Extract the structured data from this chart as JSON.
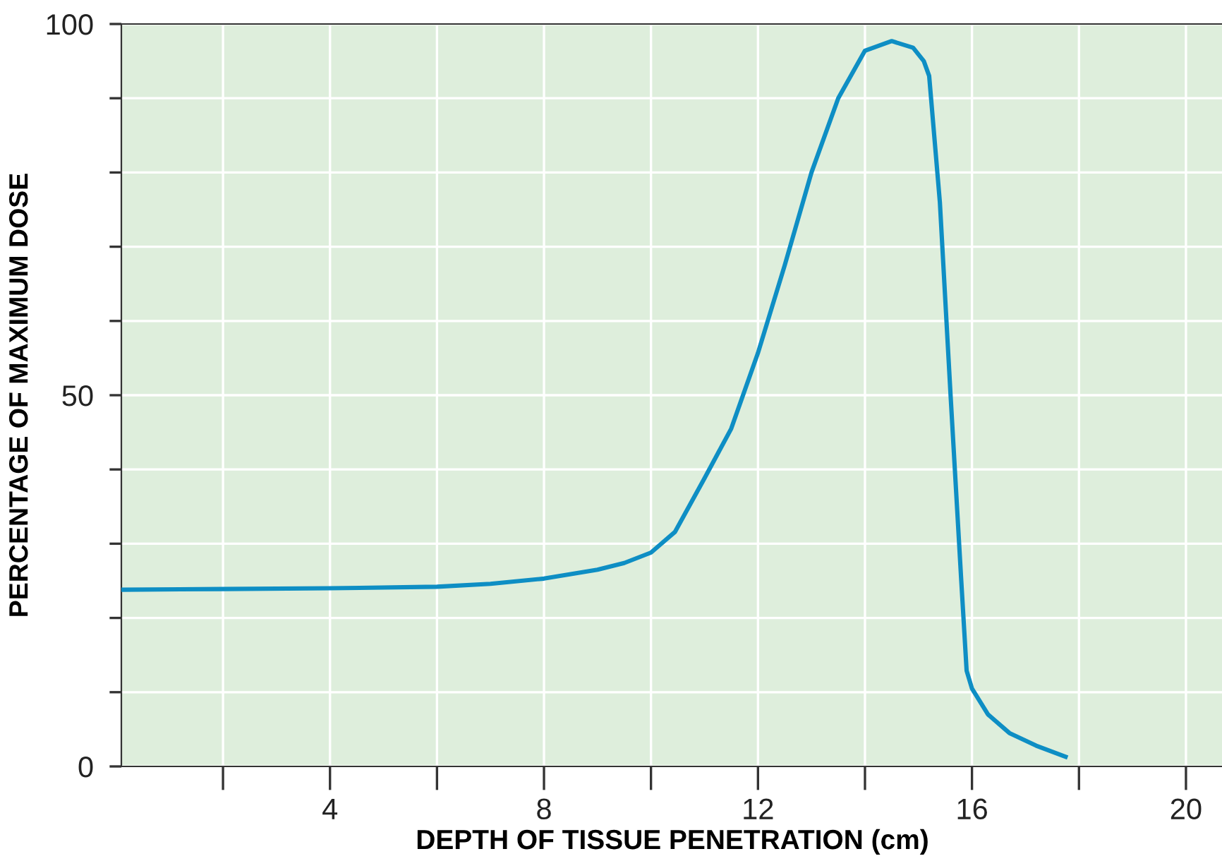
{
  "chart_data": {
    "type": "line",
    "xlabel": "DEPTH OF TISSUE PENETRATION (cm)",
    "ylabel": "PERCENTAGE OF MAXIMUM DOSE",
    "series": [
      {
        "color": "#0e8ec4",
        "x": [
          0.1,
          2,
          4,
          6,
          7,
          8,
          9,
          9.5,
          10,
          10.45,
          11,
          11.5,
          12,
          12.5,
          13,
          13.5,
          14,
          14.5,
          14.9,
          15.1,
          15.2,
          15.4,
          15.6,
          15.8,
          15.9,
          16,
          16.3,
          16.7,
          17.2,
          17.75
        ],
        "values": [
          23.8,
          23.9,
          24,
          24.2,
          24.6,
          25.3,
          26.5,
          27.4,
          28.8,
          31.6,
          38.8,
          45.5,
          55.7,
          67.5,
          80,
          90,
          96.4,
          97.7,
          96.8,
          95,
          93,
          76,
          50,
          25,
          12.9,
          10.5,
          7,
          4.5,
          2.8,
          1.3
        ]
      }
    ],
    "xlim": [
      0.1,
      20.7
    ],
    "ylim": [
      0,
      100
    ],
    "xticks": [
      {
        "value": 2,
        "label": null
      },
      4,
      {
        "value": 6,
        "label": null
      },
      8,
      {
        "value": 10,
        "label": null
      },
      12,
      {
        "value": 14,
        "label": null
      },
      16,
      {
        "value": 18,
        "label": null
      },
      20
    ],
    "yticks": [
      0,
      {
        "value": 10,
        "label": null
      },
      {
        "value": 20,
        "label": null
      },
      {
        "value": 30,
        "label": null
      },
      {
        "value": 40,
        "label": null
      },
      50,
      {
        "value": 60,
        "label": null
      },
      {
        "value": 70,
        "label": null
      },
      {
        "value": 80,
        "label": null
      },
      {
        "value": 90,
        "label": null
      },
      100
    ],
    "grid": true,
    "marker": "none",
    "line_style": "solid"
  }
}
